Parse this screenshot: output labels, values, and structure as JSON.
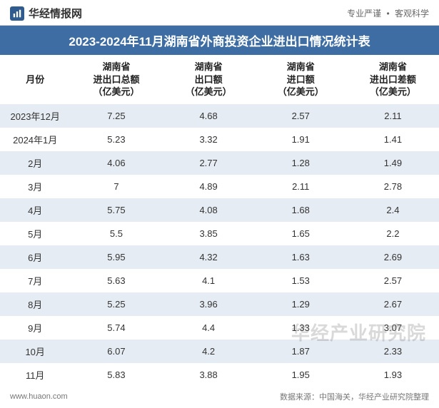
{
  "header": {
    "brand_text": "华经情报网",
    "tagline_left": "专业严谨",
    "tagline_right": "客观科学"
  },
  "title": "2023-2024年11月湖南省外商投资企业进出口情况统计表",
  "table": {
    "columns": [
      "月份",
      "湖南省\n进出口总额\n（亿美元）",
      "湖南省\n出口额\n（亿美元）",
      "湖南省\n进口额\n（亿美元）",
      "湖南省\n进出口差额\n（亿美元）"
    ],
    "rows": [
      [
        "2023年12月",
        "7.25",
        "4.68",
        "2.57",
        "2.11"
      ],
      [
        "2024年1月",
        "5.23",
        "3.32",
        "1.91",
        "1.41"
      ],
      [
        "2月",
        "4.06",
        "2.77",
        "1.28",
        "1.49"
      ],
      [
        "3月",
        "7",
        "4.89",
        "2.11",
        "2.78"
      ],
      [
        "4月",
        "5.75",
        "4.08",
        "1.68",
        "2.4"
      ],
      [
        "5月",
        "5.5",
        "3.85",
        "1.65",
        "2.2"
      ],
      [
        "6月",
        "5.95",
        "4.32",
        "1.63",
        "2.69"
      ],
      [
        "7月",
        "5.63",
        "4.1",
        "1.53",
        "2.57"
      ],
      [
        "8月",
        "5.25",
        "3.96",
        "1.29",
        "2.67"
      ],
      [
        "9月",
        "5.74",
        "4.4",
        "1.33",
        "3.07"
      ],
      [
        "10月",
        "6.07",
        "4.2",
        "1.87",
        "2.33"
      ],
      [
        "11月",
        "5.83",
        "3.88",
        "1.95",
        "1.93"
      ]
    ]
  },
  "footer": {
    "url": "www.huaon.com",
    "source": "数据来源：中国海关，华经产业研究院整理"
  },
  "watermark": "华经产业研究院",
  "styling": {
    "title_bg": "#3e6da3",
    "title_fg": "#ffffff",
    "row_stripe_bg": "#e6ecf3",
    "row_plain_bg": "#ffffff",
    "font_family": "Microsoft YaHei",
    "title_fontsize": 17,
    "header_fontsize": 13,
    "cell_fontsize": 13,
    "brand_icon_bg": "#2f5b8f"
  }
}
